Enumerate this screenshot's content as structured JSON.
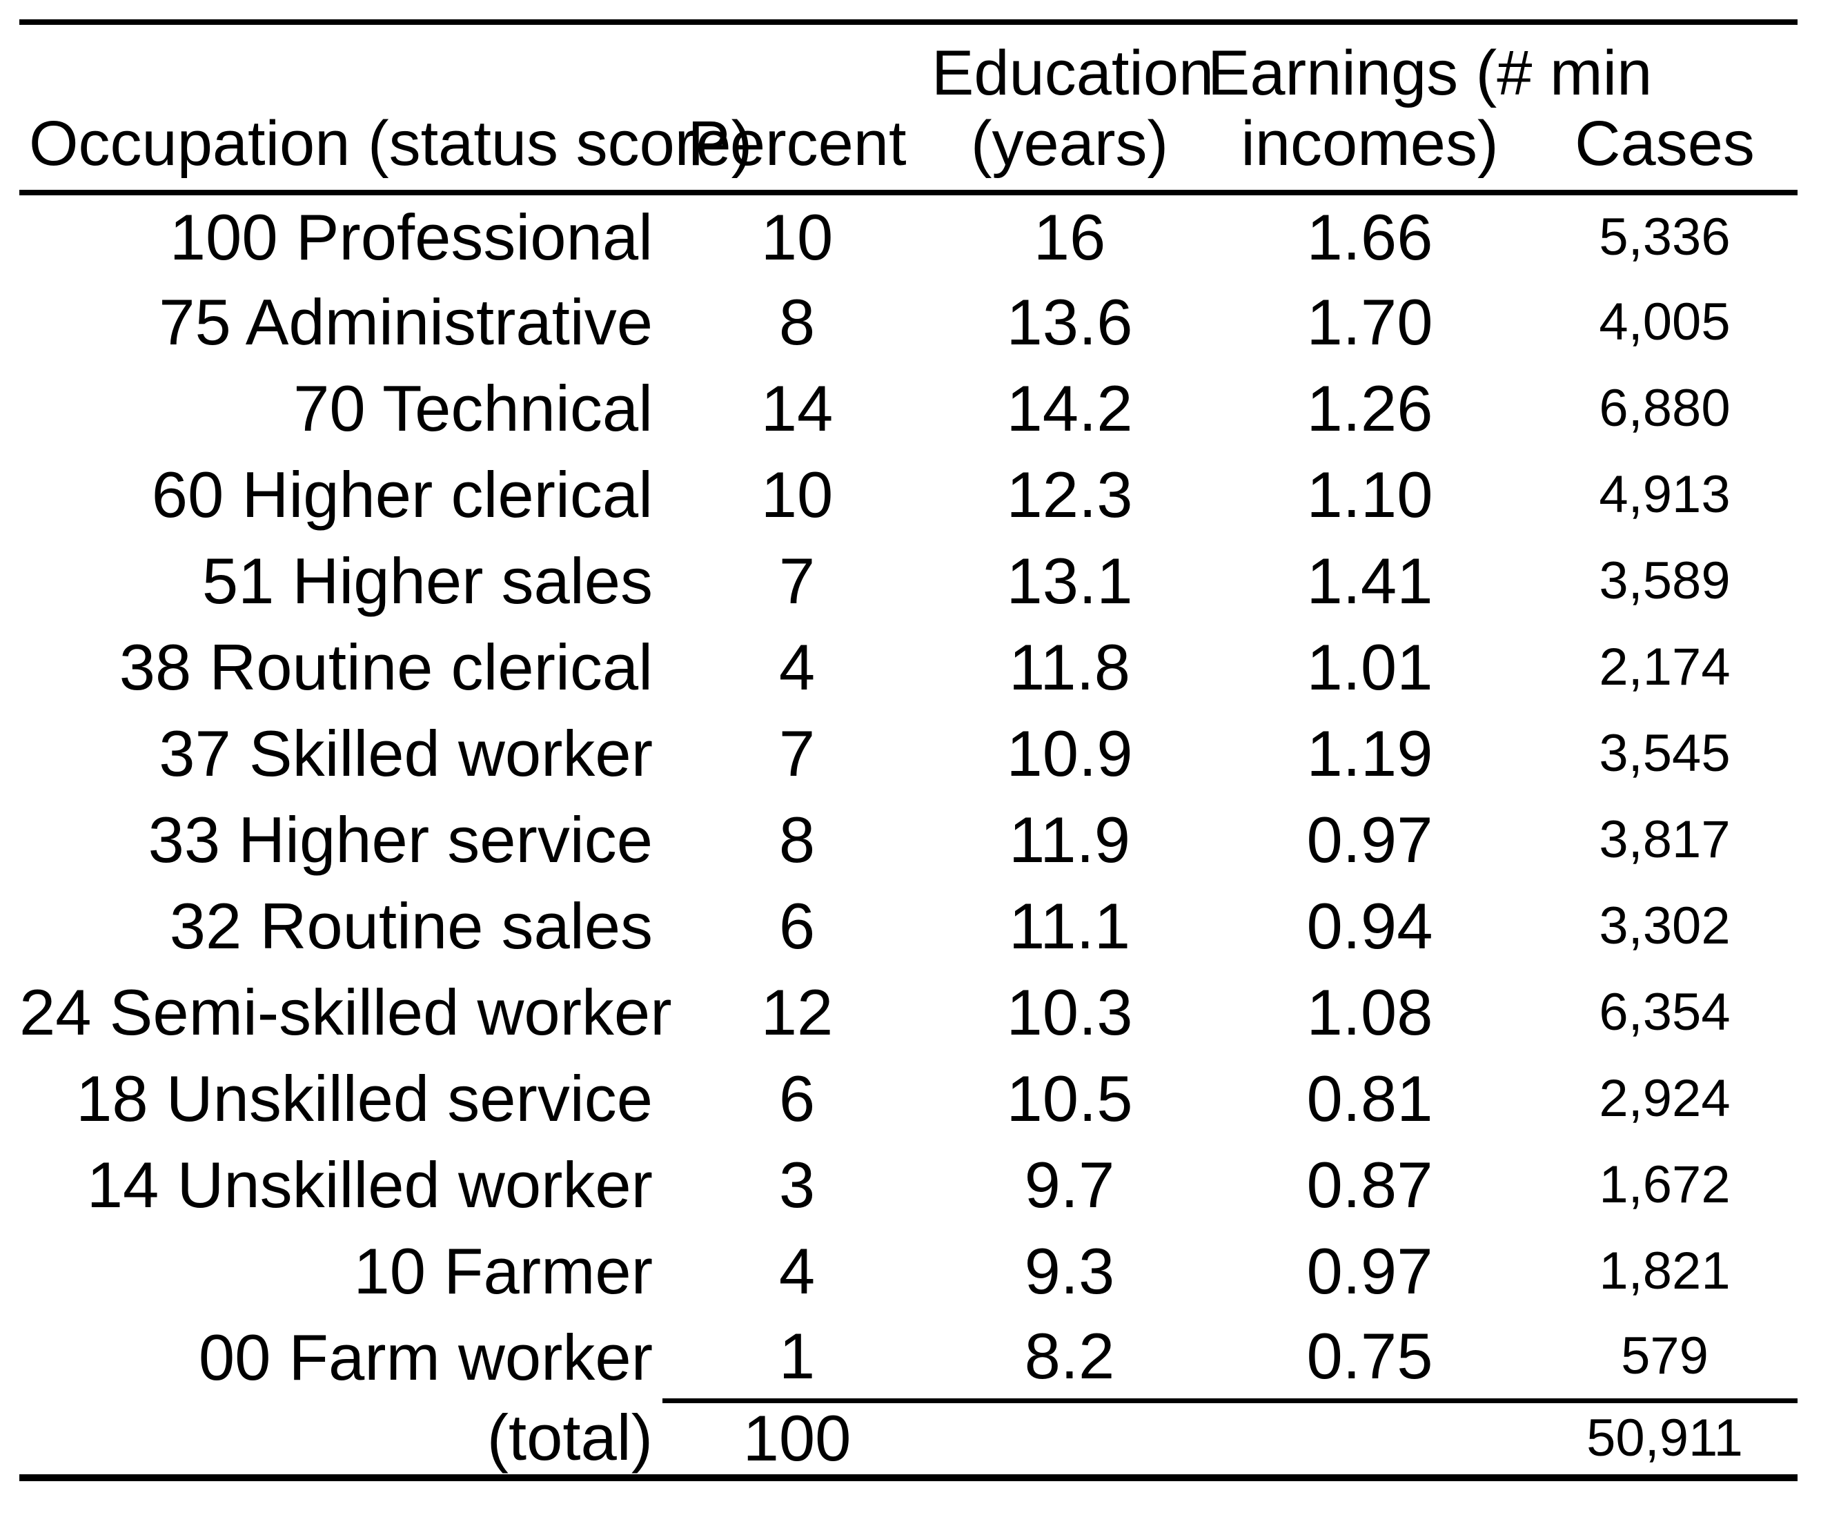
{
  "table": {
    "header": {
      "occupation": "Occupation (status score)",
      "percent": "Percent",
      "education": [
        "Education",
        "(years)"
      ],
      "earnings": [
        "Earnings (# min",
        "incomes)"
      ],
      "cases": "Cases"
    },
    "rows": [
      {
        "occ": "100 Professional",
        "pct": "10",
        "edu": "16",
        "earn": "1.66",
        "cases": "5,336"
      },
      {
        "occ": "75 Administrative",
        "pct": "8",
        "edu": "13.6",
        "earn": "1.70",
        "cases": "4,005"
      },
      {
        "occ": "70 Technical",
        "pct": "14",
        "edu": "14.2",
        "earn": "1.26",
        "cases": "6,880"
      },
      {
        "occ": "60 Higher clerical",
        "pct": "10",
        "edu": "12.3",
        "earn": "1.10",
        "cases": "4,913"
      },
      {
        "occ": "51 Higher sales",
        "pct": "7",
        "edu": "13.1",
        "earn": "1.41",
        "cases": "3,589"
      },
      {
        "occ": "38 Routine clerical",
        "pct": "4",
        "edu": "11.8",
        "earn": "1.01",
        "cases": "2,174"
      },
      {
        "occ": "37 Skilled worker",
        "pct": "7",
        "edu": "10.9",
        "earn": "1.19",
        "cases": "3,545"
      },
      {
        "occ": "33 Higher service",
        "pct": "8",
        "edu": "11.9",
        "earn": "0.97",
        "cases": "3,817"
      },
      {
        "occ": "32 Routine sales",
        "pct": "6",
        "edu": "11.1",
        "earn": "0.94",
        "cases": "3,302"
      },
      {
        "occ": "24 Semi-skilled worker",
        "pct": "12",
        "edu": "10.3",
        "earn": "1.08",
        "cases": "6,354"
      },
      {
        "occ": "18 Unskilled service",
        "pct": "6",
        "edu": "10.5",
        "earn": "0.81",
        "cases": "2,924"
      },
      {
        "occ": "14 Unskilled worker",
        "pct": "3",
        "edu": "9.7",
        "earn": "0.87",
        "cases": "1,672"
      },
      {
        "occ": "10 Farmer",
        "pct": "4",
        "edu": "9.3",
        "earn": "0.97",
        "cases": "1,821"
      },
      {
        "occ": "00 Farm worker",
        "pct": "1",
        "edu": "8.2",
        "earn": "0.75",
        "cases": "579"
      }
    ],
    "total": {
      "label": "(total)",
      "pct": "100",
      "edu": "",
      "earn": "",
      "cases": "50,911"
    },
    "colors": {
      "text": "#000000",
      "background": "#ffffff",
      "rule": "#000000"
    }
  }
}
